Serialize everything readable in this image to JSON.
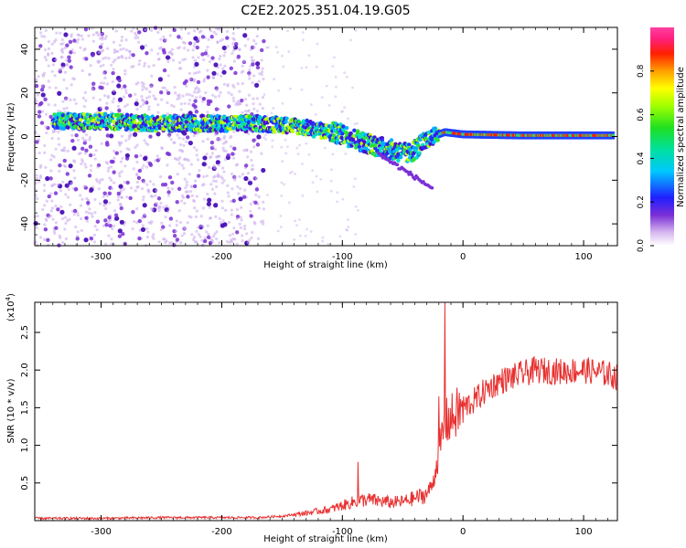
{
  "title": "C2E2.2025.351.04.19.G05",
  "colors": {
    "snr_line": "#e83030",
    "axis": "#000000",
    "dot_low": "#c9a8ec",
    "dot_mid": "#7a2fd6",
    "dot_high": "#4a10b8"
  },
  "chart_data": [
    {
      "type": "heatmap",
      "name": "spectrogram",
      "xlabel": "Height of straight line (km)",
      "ylabel": "Frequency (Hz)",
      "xlim": [
        -355,
        128
      ],
      "ylim": [
        -50,
        50
      ],
      "xticks": [
        -300,
        -200,
        -100,
        0,
        100
      ],
      "yticks": [
        -40,
        -20,
        0,
        20,
        40
      ],
      "ridge": {
        "description_points_x": [
          -340,
          -300,
          -250,
          -200,
          -170,
          -140,
          -120,
          -100,
          -80,
          -60,
          -45,
          -35,
          -25,
          -15,
          0,
          50,
          120
        ],
        "description_points_y": [
          7,
          7,
          6,
          6,
          6,
          5,
          3,
          1,
          -3,
          -6,
          -8,
          -4,
          0,
          2,
          1,
          0.5,
          0.5
        ]
      },
      "colorbar": {
        "label": "Normalized spectral amplitude",
        "range": [
          0.0,
          1.0
        ],
        "ticks": [
          0.0,
          0.2,
          0.4,
          0.6,
          0.8
        ],
        "tick_labels": [
          "0.0",
          "0.2",
          "0.4",
          "0.6",
          "0.8"
        ]
      }
    },
    {
      "type": "line",
      "name": "snr",
      "xlabel": "Height of straight line (km)",
      "ylabel": "SNR (10 * v/v)",
      "yscale_label": "(x10",
      "yscale_exp": "4",
      "xlim": [
        -355,
        128
      ],
      "ylim": [
        0,
        2.9
      ],
      "xticks": [
        -300,
        -200,
        -100,
        0,
        100
      ],
      "yticks": [
        0.5,
        1.0,
        1.5,
        2.0,
        2.5
      ],
      "series": [
        {
          "name": "SNR",
          "x": [
            -355,
            -300,
            -250,
            -200,
            -170,
            -150,
            -130,
            -110,
            -100,
            -90,
            -80,
            -70,
            -60,
            -50,
            -40,
            -30,
            -25,
            -20,
            -15,
            -10,
            0,
            10,
            20,
            30,
            40,
            50,
            60,
            80,
            100,
            120,
            128
          ],
          "y": [
            0.03,
            0.03,
            0.04,
            0.04,
            0.04,
            0.06,
            0.1,
            0.15,
            0.2,
            0.25,
            0.28,
            0.26,
            0.24,
            0.25,
            0.3,
            0.35,
            0.5,
            0.9,
            1.3,
            1.35,
            1.5,
            1.6,
            1.75,
            1.85,
            1.9,
            1.95,
            2.0,
            1.98,
            2.0,
            1.95,
            1.9
          ],
          "spikes": [
            {
              "x": -15,
              "y": 2.9
            },
            {
              "x": -87,
              "y": 0.78
            },
            {
              "x": -20,
              "y": 1.65
            }
          ]
        }
      ]
    }
  ]
}
